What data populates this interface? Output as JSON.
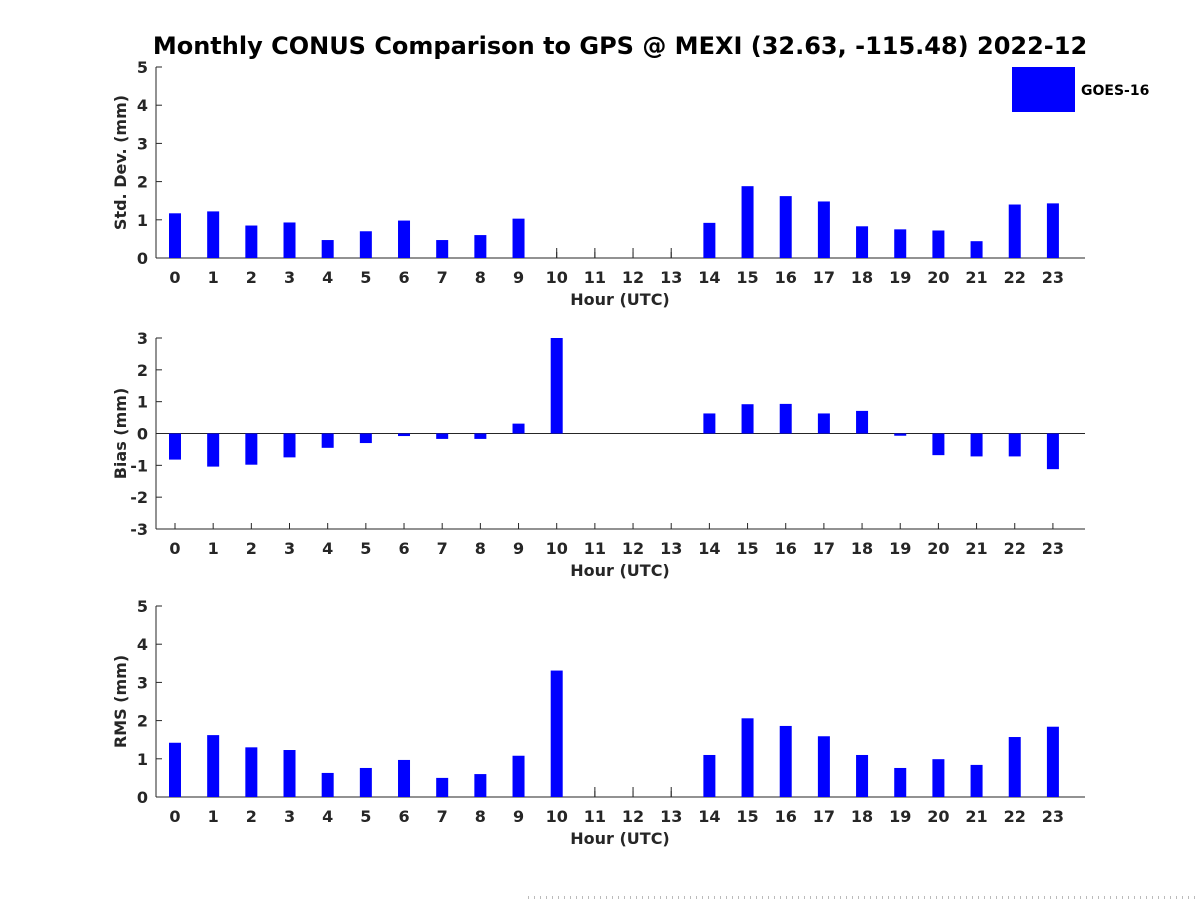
{
  "title": "Monthly CONUS Comparison to GPS @ MEXI (32.63, -115.48) 2022-12",
  "legend": {
    "label": "GOES-16",
    "color": "#0000ff",
    "placement": "top-right"
  },
  "colors": {
    "bar": "#0000ff",
    "axis": "#262626",
    "missing_marker": "#262626"
  },
  "chart_data": [
    {
      "type": "bar",
      "title": "Monthly CONUS Comparison to GPS @ MEXI (32.63, -115.48) 2022-12",
      "xlabel": "Hour (UTC)",
      "ylabel": "Std. Dev. (mm)",
      "ylim": [
        0,
        5
      ],
      "yticks": [
        0,
        1,
        2,
        3,
        4,
        5
      ],
      "grid": false,
      "categories": [
        "0",
        "1",
        "2",
        "3",
        "4",
        "5",
        "6",
        "7",
        "8",
        "9",
        "10",
        "11",
        "12",
        "13",
        "14",
        "15",
        "16",
        "17",
        "18",
        "19",
        "20",
        "21",
        "22",
        "23"
      ],
      "series": [
        {
          "name": "GOES-16",
          "values": [
            1.17,
            1.22,
            0.85,
            0.93,
            0.47,
            0.7,
            0.98,
            0.47,
            0.6,
            1.03,
            null,
            null,
            null,
            null,
            0.92,
            1.88,
            1.62,
            1.48,
            0.83,
            0.75,
            0.72,
            0.44,
            1.4,
            1.43
          ]
        }
      ]
    },
    {
      "type": "bar",
      "xlabel": "Hour (UTC)",
      "ylabel": "Bias (mm)",
      "ylim": [
        -3,
        3
      ],
      "yticks": [
        -3,
        -2,
        -1,
        0,
        1,
        2,
        3
      ],
      "grid": false,
      "categories": [
        "0",
        "1",
        "2",
        "3",
        "4",
        "5",
        "6",
        "7",
        "8",
        "9",
        "10",
        "11",
        "12",
        "13",
        "14",
        "15",
        "16",
        "17",
        "18",
        "19",
        "20",
        "21",
        "22",
        "23"
      ],
      "series": [
        {
          "name": "GOES-16",
          "values": [
            -0.82,
            -1.04,
            -0.98,
            -0.75,
            -0.45,
            -0.3,
            -0.08,
            -0.17,
            -0.17,
            0.31,
            3.0,
            null,
            null,
            null,
            0.63,
            0.92,
            0.93,
            0.63,
            0.71,
            -0.07,
            -0.68,
            -0.72,
            -0.72,
            -1.12
          ]
        }
      ]
    },
    {
      "type": "bar",
      "xlabel": "Hour (UTC)",
      "ylabel": "RMS (mm)",
      "ylim": [
        0,
        5
      ],
      "yticks": [
        0,
        1,
        2,
        3,
        4,
        5
      ],
      "grid": false,
      "categories": [
        "0",
        "1",
        "2",
        "3",
        "4",
        "5",
        "6",
        "7",
        "8",
        "9",
        "10",
        "11",
        "12",
        "13",
        "14",
        "15",
        "16",
        "17",
        "18",
        "19",
        "20",
        "21",
        "22",
        "23"
      ],
      "series": [
        {
          "name": "GOES-16",
          "values": [
            1.42,
            1.62,
            1.3,
            1.23,
            0.63,
            0.76,
            0.97,
            0.5,
            0.6,
            1.08,
            3.31,
            null,
            null,
            null,
            1.1,
            2.06,
            1.86,
            1.59,
            1.1,
            0.76,
            0.99,
            0.84,
            1.57,
            1.84
          ]
        }
      ]
    }
  ]
}
